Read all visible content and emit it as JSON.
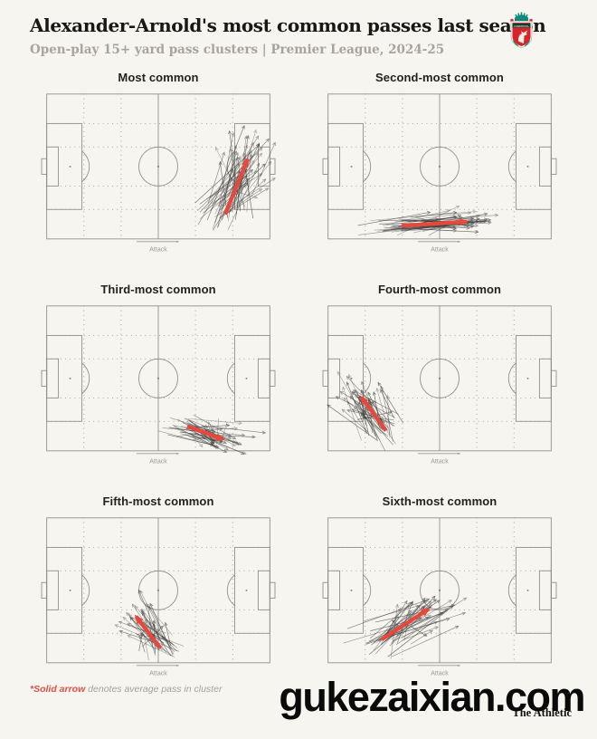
{
  "header": {
    "title": "Alexander-Arnold's most common passes last season",
    "subtitle": "Open-play 15+ yard pass clusters | Premier League, 2024-25"
  },
  "footer": {
    "note_highlight": "*Solid arrow",
    "note_rest": " denotes average pass in cluster",
    "watermark": "gukezaixian.com",
    "brand": "The Athletic"
  },
  "colors": {
    "background": "#f7f5ef",
    "pitch_line": "#8d8d86",
    "grid_dot": "#98988f",
    "pass_line": "#3c3c3c",
    "avg_arrow": "#e8483c",
    "attack_label": "#9a9a94",
    "note_red": "#e05045",
    "title_text": "#181817",
    "subtitle_text": "#a8a49c"
  },
  "chart_data": {
    "type": "scatter",
    "subtype": "pass-cluster-small-multiples",
    "pitch": "full football pitch, attack left-to-right, sixth-based dotted zone grid",
    "units": "percent of pitch: x 0=own goal line, 100=attacking goal line; y 0=top touchline, 100=bottom touchline",
    "attack_label": "Attack",
    "footnote": "*Solid arrow denotes average pass in cluster",
    "panels": [
      {
        "title": "Most common",
        "avg_pass": {
          "from": [
            80,
            83
          ],
          "to": [
            90,
            45
          ]
        },
        "passes_shown": 55,
        "start_sd": [
          6.5,
          6.5
        ],
        "end_sd": [
          5.5,
          12
        ],
        "seed": 11
      },
      {
        "title": "Second-most common",
        "avg_pass": {
          "from": [
            33,
            91
          ],
          "to": [
            62,
            88
          ]
        },
        "passes_shown": 50,
        "start_sd": [
          8,
          3.5
        ],
        "end_sd": [
          7,
          4
        ],
        "seed": 23
      },
      {
        "title": "Third-most common",
        "avg_pass": {
          "from": [
            63,
            83
          ],
          "to": [
            79,
            92
          ]
        },
        "passes_shown": 48,
        "start_sd": [
          6,
          4.5
        ],
        "end_sd": [
          7,
          5
        ],
        "seed": 37
      },
      {
        "title": "Fourth-most common",
        "avg_pass": {
          "from": [
            26,
            86
          ],
          "to": [
            15,
            63
          ]
        },
        "passes_shown": 50,
        "start_sd": [
          5,
          6.5
        ],
        "end_sd": [
          5.5,
          8.5
        ],
        "seed": 41
      },
      {
        "title": "Fifth-most common",
        "avg_pass": {
          "from": [
            51,
            90
          ],
          "to": [
            40,
            68
          ]
        },
        "passes_shown": 40,
        "start_sd": [
          5.5,
          4.5
        ],
        "end_sd": [
          6.5,
          8.5
        ],
        "seed": 53
      },
      {
        "title": "Sixth-most common",
        "avg_pass": {
          "from": [
            24,
            84
          ],
          "to": [
            45,
            63
          ]
        },
        "passes_shown": 45,
        "start_sd": [
          6,
          6
        ],
        "end_sd": [
          7.5,
          7.5
        ],
        "seed": 67
      }
    ]
  }
}
